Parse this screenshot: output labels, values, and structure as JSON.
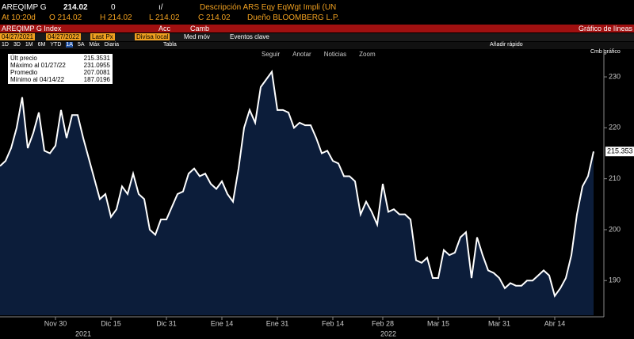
{
  "header": {
    "ticker": "AREQIMP G",
    "price": "214.02",
    "change": "0",
    "arrow": "ı/",
    "description": "Descripción ARS Eqy EqWgt Impli (UN",
    "time": "At 10:20d",
    "open": "O 214.02",
    "high": "H 214.02",
    "low": "L 214.02",
    "close": "C 214.02",
    "owner": "Dueño BLOOMBERG L.P."
  },
  "menubar": {
    "security": "AREQIMP G Index",
    "actions": "Acc",
    "change": "Camb",
    "view": "Gráfico de líneas"
  },
  "toolbar": {
    "start": "04/27/2021",
    "end": "04/27/2022",
    "field": "Last Px",
    "currency": "Divisa local",
    "moving_avg": "Med móv",
    "events": "Eventos clave",
    "periods": [
      "1D",
      "3D",
      "1M",
      "6M",
      "YTD",
      "1A",
      "5A",
      "Máx",
      "Diaria"
    ],
    "table": "Tabla",
    "quick_add": "Añadir rápido",
    "chart_change": "Cmb gráfico",
    "chart_tools": [
      "Seguir",
      "Anotar",
      "Noticias",
      "Zoom"
    ]
  },
  "legend": [
    [
      "Últ precio",
      "215.3531"
    ],
    [
      "Máximo al 01/27/22",
      "231.0955"
    ],
    [
      "Promedio",
      "207.0081"
    ],
    [
      "Mínimo al 04/14/22",
      "187.0196"
    ]
  ],
  "last_tag": "215.353",
  "chart_data": {
    "type": "area",
    "color": "#ffffff",
    "fill": "#0c1d3a",
    "categories": [
      null,
      null,
      null,
      null,
      null,
      null,
      null,
      null,
      null,
      null,
      "Nov 30",
      null,
      null,
      null,
      null,
      null,
      null,
      null,
      null,
      null,
      "Dic 15",
      null,
      null,
      null,
      null,
      null,
      null,
      null,
      null,
      null,
      "Dic 31",
      null,
      null,
      null,
      null,
      null,
      null,
      null,
      null,
      null,
      "Ene 14",
      null,
      null,
      null,
      null,
      null,
      null,
      null,
      null,
      null,
      "Ene 31",
      null,
      null,
      null,
      null,
      null,
      null,
      null,
      null,
      null,
      "Feb 14",
      null,
      null,
      null,
      null,
      null,
      null,
      null,
      null,
      "Feb 28",
      null,
      null,
      null,
      null,
      null,
      null,
      null,
      null,
      null,
      "Mar 15",
      null,
      null,
      null,
      null,
      null,
      null,
      null,
      null,
      null,
      null,
      "Mar 31",
      null,
      null,
      null,
      null,
      null,
      null,
      null,
      null,
      null,
      "Abr 14",
      null,
      null,
      null,
      null,
      null,
      null,
      null
    ],
    "year_labels": [
      "2021",
      "2022"
    ],
    "values": [
      212.5,
      213.5,
      216,
      220,
      226,
      216,
      219,
      223,
      215.5,
      215,
      216.5,
      223.5,
      218,
      222.5,
      222.5,
      218,
      214,
      210,
      206,
      207,
      202.5,
      204,
      208.5,
      207,
      211,
      207,
      206,
      200,
      199,
      202,
      202,
      204.5,
      207,
      207.5,
      211,
      212,
      210.5,
      211,
      209,
      208,
      209.5,
      207,
      205.5,
      212,
      220,
      223.5,
      221,
      228,
      229.5,
      231,
      223.5,
      223.5,
      223,
      220,
      221,
      220.5,
      220.5,
      218,
      215,
      215.5,
      213.5,
      213,
      210.5,
      210.5,
      209.5,
      203,
      205.5,
      203.5,
      201,
      209,
      203.5,
      204,
      203,
      203,
      202,
      194,
      193.5,
      194.5,
      190.5,
      190.5,
      196,
      195,
      195.5,
      198.5,
      199.5,
      190.5,
      198.5,
      195,
      192,
      191.5,
      190.5,
      188.5,
      189.5,
      189,
      189,
      190,
      190,
      191,
      192,
      191,
      187,
      188.5,
      190.5,
      195,
      203,
      208.5,
      210.5,
      215.3531
    ],
    "ylim": [
      183.2,
      235.45
    ],
    "yticks": [
      190,
      200,
      210,
      220,
      230
    ]
  }
}
